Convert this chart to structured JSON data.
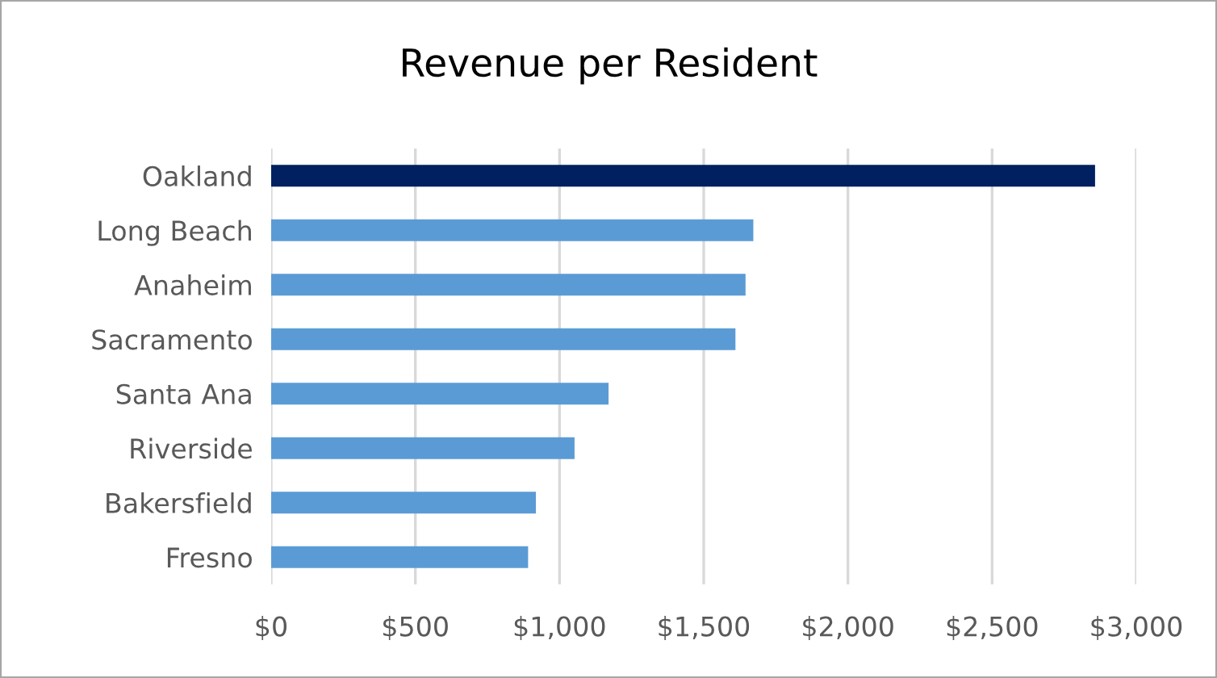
{
  "chart_data": {
    "type": "bar",
    "orientation": "horizontal",
    "title": "Revenue per Resident",
    "categories": [
      "Oakland",
      "Long Beach",
      "Anaheim",
      "Sacramento",
      "Santa Ana",
      "Riverside",
      "Bakersfield",
      "Fresno"
    ],
    "values": [
      2857,
      1672,
      1645,
      1610,
      1170,
      1052,
      918,
      891
    ],
    "colors": [
      "#002060",
      "#5b9bd5",
      "#5b9bd5",
      "#5b9bd5",
      "#5b9bd5",
      "#5b9bd5",
      "#5b9bd5",
      "#5b9bd5"
    ],
    "xlim": [
      0,
      3000
    ],
    "xticks": [
      {
        "value": 0,
        "label": "$0"
      },
      {
        "value": 500,
        "label": "$500"
      },
      {
        "value": 1000,
        "label": "$1,000"
      },
      {
        "value": 1500,
        "label": "$1,500"
      },
      {
        "value": 2000,
        "label": "$2,000"
      },
      {
        "value": 2500,
        "label": "$2,500"
      },
      {
        "value": 3000,
        "label": "$3,000"
      }
    ],
    "grid": "x",
    "legend": false
  }
}
